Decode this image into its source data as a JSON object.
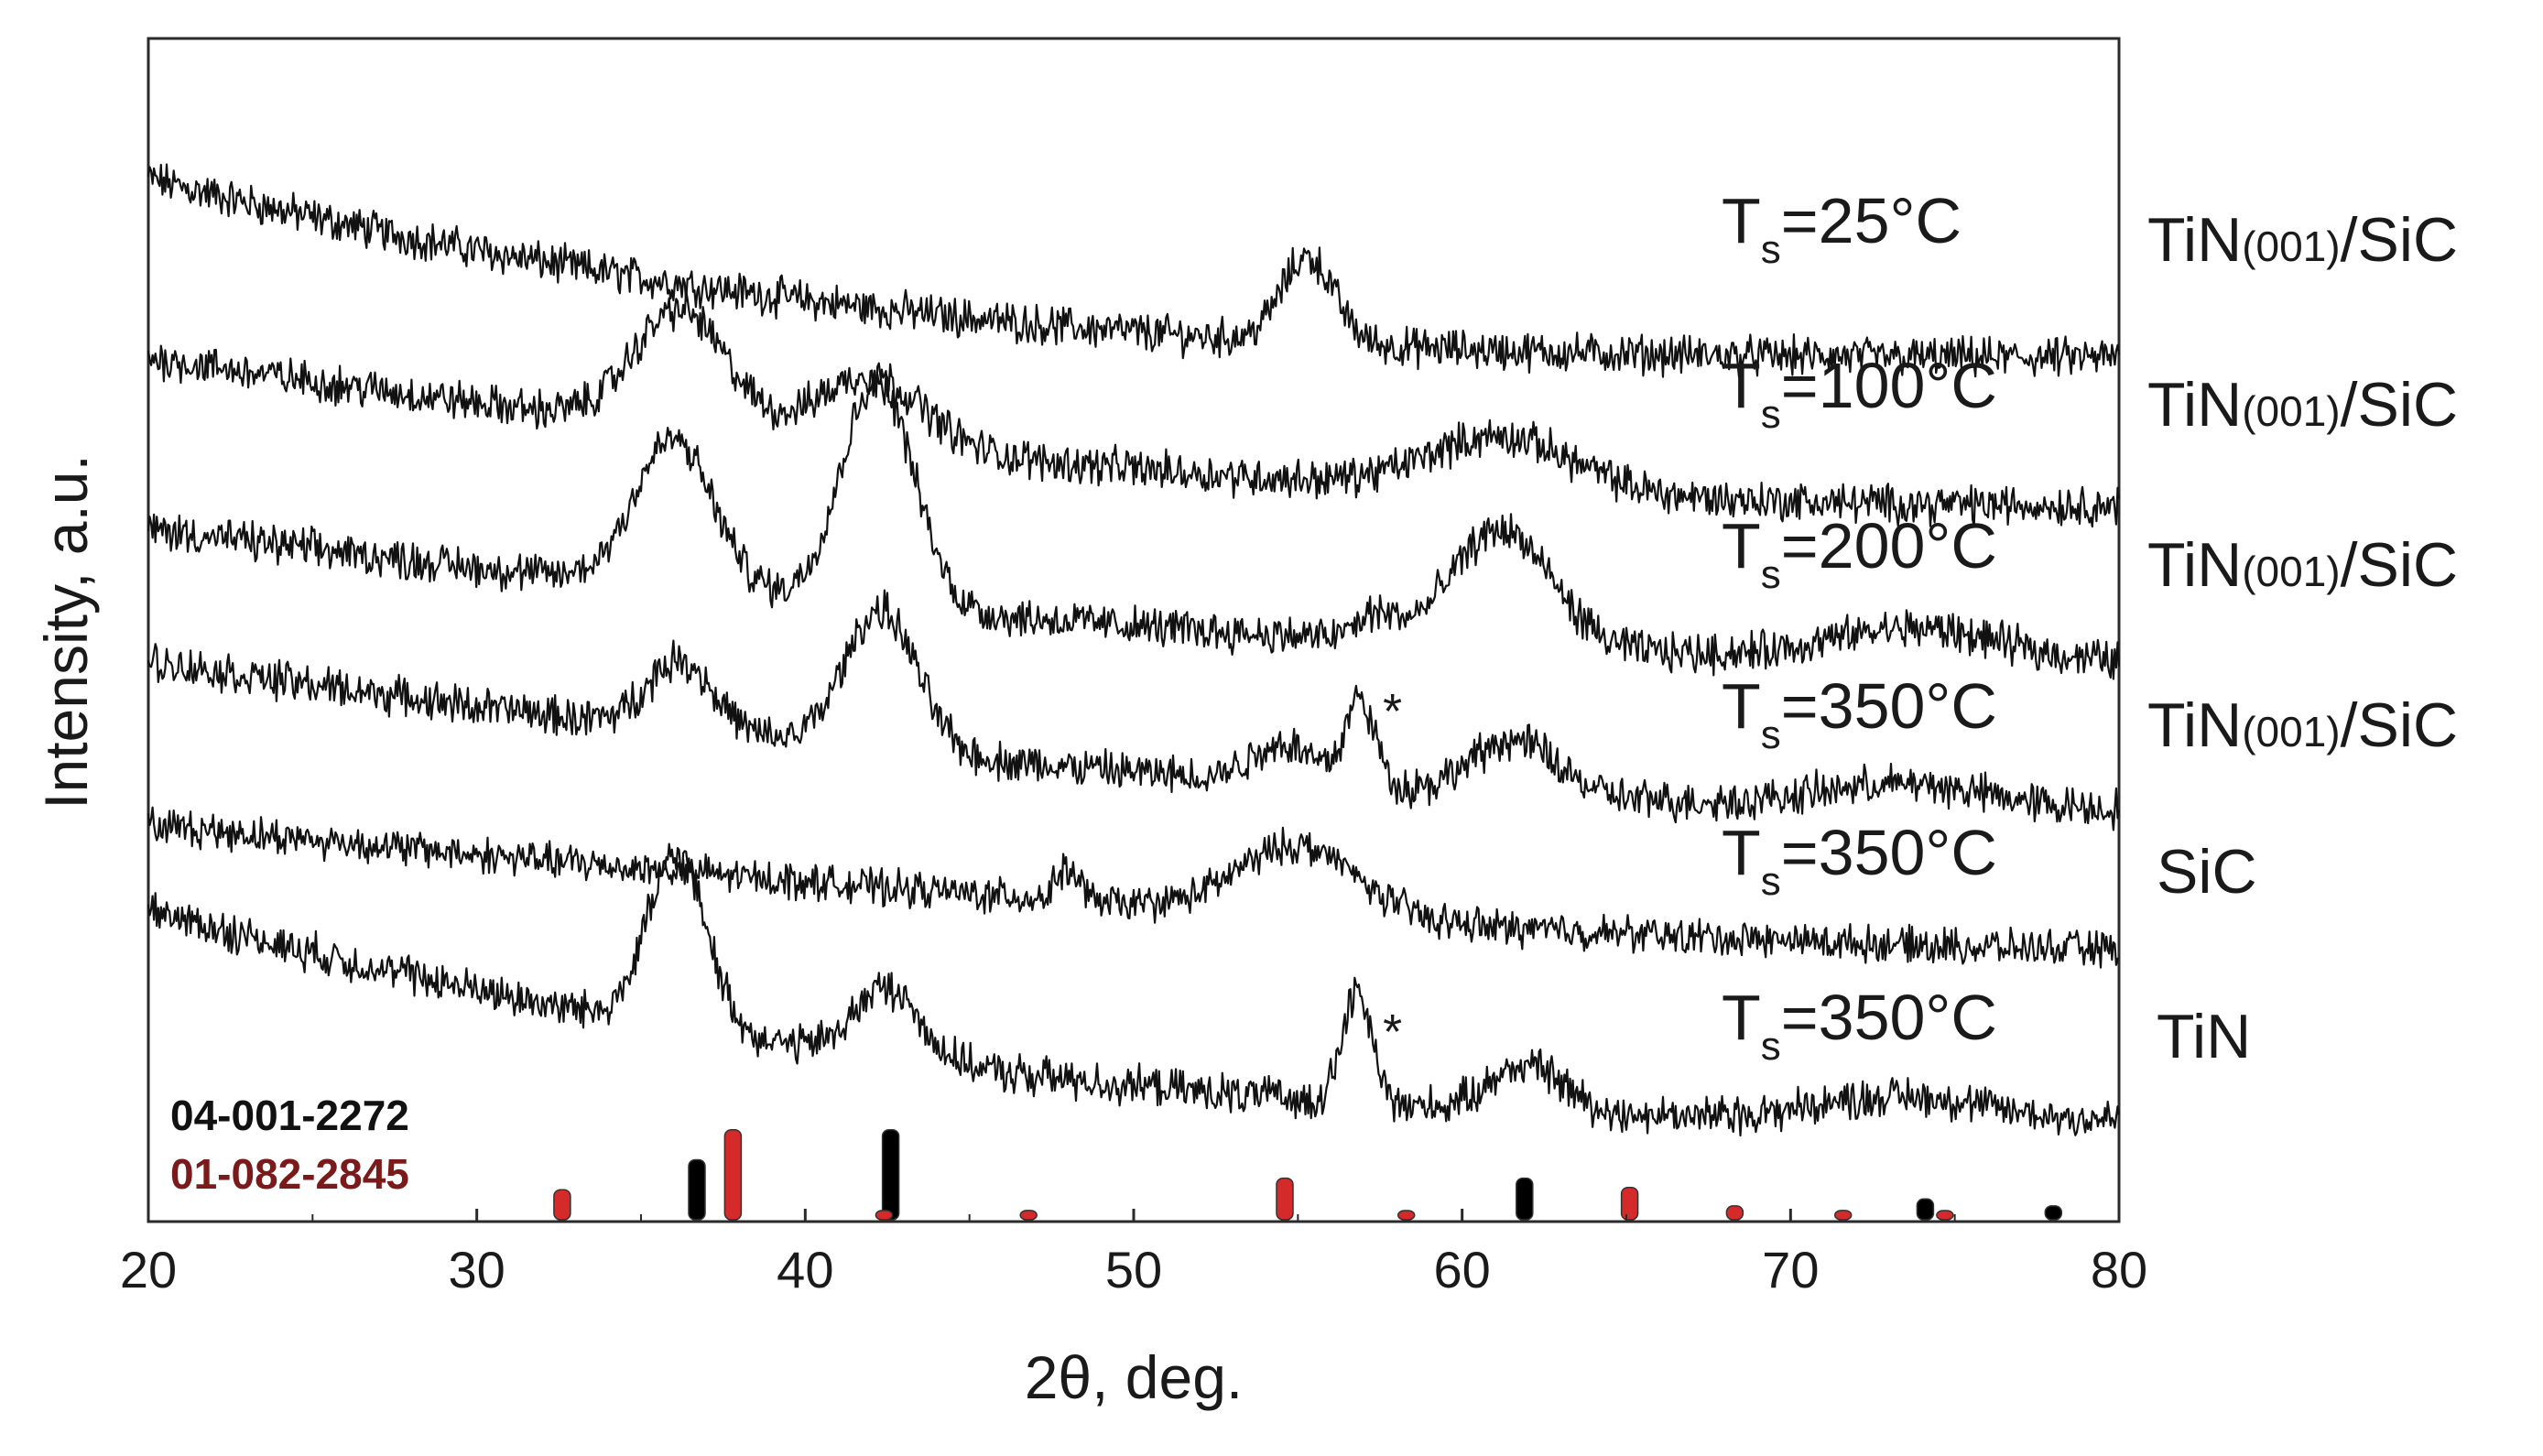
{
  "chart_data": {
    "type": "line",
    "title": "",
    "xlabel": "2θ, deg.",
    "ylabel": "Intensity, a.u.",
    "xlim": [
      20,
      80
    ],
    "ylim": [
      0,
      7.6
    ],
    "x_ticks": [
      "20",
      "30",
      "40",
      "50",
      "60",
      "70",
      "80"
    ],
    "y_ticks": [],
    "grid": false,
    "legend": "none",
    "series": [
      {
        "name": "TiN(001)/SiC Ts=25°C",
        "ts_main": "T",
        "ts_sub": "s",
        "ts_value": "=25°C",
        "sample_prefix": "TiN",
        "sample_sub": "(001)",
        "sample_suffix": "/SiC",
        "offset": 5.55,
        "bg_start": 1.15,
        "bg_end": 0.0,
        "bg_curve": 0.9,
        "noise": 0.1,
        "peaks": [
          {
            "x": 55.3,
            "height": 0.55,
            "width": 0.8
          }
        ]
      },
      {
        "name": "TiN(001)/SiC Ts=100°C",
        "ts_main": "T",
        "ts_sub": "s",
        "ts_value": "=100°C",
        "sample_prefix": "TiN",
        "sample_sub": "(001)",
        "sample_suffix": "/SiC",
        "offset": 4.6,
        "bg_start": 0.95,
        "bg_end": 0.0,
        "bg_curve": 0.5,
        "noise": 0.1,
        "peaks": [
          {
            "x": 36.2,
            "height": 0.75,
            "width": 1.4
          },
          {
            "x": 42.0,
            "height": 0.45,
            "width": 1.6
          },
          {
            "x": 61.2,
            "height": 0.35,
            "width": 2.2
          }
        ]
      },
      {
        "name": "TiN(001)/SiC Ts=200°C",
        "ts_main": "T",
        "ts_sub": "s",
        "ts_value": "=200°C",
        "sample_prefix": "TiN",
        "sample_sub": "(001)",
        "sample_suffix": "/SiC",
        "offset": 3.6,
        "bg_start": 0.85,
        "bg_end": 0.0,
        "bg_curve": 0.45,
        "noise": 0.1,
        "peaks": [
          {
            "x": 36.0,
            "height": 0.95,
            "width": 1.2
          },
          {
            "x": 42.2,
            "height": 1.45,
            "width": 1.1
          },
          {
            "x": 57.4,
            "height": 0.15,
            "width": 0.6
          },
          {
            "x": 61.2,
            "height": 0.75,
            "width": 1.5
          },
          {
            "x": 73.8,
            "height": 0.2,
            "width": 2.5
          }
        ]
      },
      {
        "name": "TiN(001)/SiC Ts=350°C",
        "ts_main": "T",
        "ts_sub": "s",
        "ts_value": "=350°C",
        "sample_prefix": "TiN",
        "sample_sub": "(001)",
        "sample_suffix": "/SiC",
        "offset": 2.65,
        "bg_start": 0.95,
        "bg_end": 0.0,
        "bg_curve": 0.5,
        "noise": 0.1,
        "peaks": [
          {
            "x": 36.2,
            "height": 0.45,
            "width": 1.0
          },
          {
            "x": 42.3,
            "height": 0.9,
            "width": 1.1
          },
          {
            "x": 54.6,
            "height": 0.25,
            "width": 1.0
          },
          {
            "x": 56.9,
            "height": 0.55,
            "width": 0.45
          },
          {
            "x": 61.6,
            "height": 0.35,
            "width": 1.3
          },
          {
            "x": 73.5,
            "height": 0.15,
            "width": 2.5
          }
        ],
        "star_x": 57.7
      },
      {
        "name": "SiC Ts=350°C",
        "ts_main": "T",
        "ts_sub": "s",
        "ts_value": "=350°C",
        "sample_prefix": "SiC",
        "sample_sub": "",
        "sample_suffix": "",
        "offset": 1.75,
        "bg_start": 0.8,
        "bg_end": 0.0,
        "bg_curve": 0.25,
        "noise": 0.09,
        "peaks": [
          {
            "x": 48.0,
            "height": 0.2,
            "width": 0.35
          },
          {
            "x": 55.0,
            "height": 0.45,
            "width": 1.8
          }
        ]
      },
      {
        "name": "TiN Ts=350°C",
        "ts_main": "T",
        "ts_sub": "s",
        "ts_value": "=350°C",
        "sample_prefix": "TiN",
        "sample_sub": "",
        "sample_suffix": "",
        "offset": 0.65,
        "bg_start": 1.35,
        "bg_end": 0.0,
        "bg_curve": 0.8,
        "noise": 0.1,
        "peaks": [
          {
            "x": 36.1,
            "height": 1.1,
            "width": 0.9
          },
          {
            "x": 42.5,
            "height": 0.45,
            "width": 1.0
          },
          {
            "x": 56.8,
            "height": 0.7,
            "width": 0.45
          },
          {
            "x": 62.0,
            "height": 0.3,
            "width": 1.1
          },
          {
            "x": 73.4,
            "height": 0.15,
            "width": 2.5
          }
        ],
        "star_x": 57.7
      }
    ],
    "reference_patterns": [
      {
        "name": "04-001-2272",
        "color": "#000000",
        "lines": [
          {
            "x": 36.7,
            "intensity": 0.52
          },
          {
            "x": 42.6,
            "intensity": 0.78
          },
          {
            "x": 61.9,
            "intensity": 0.36
          },
          {
            "x": 74.1,
            "intensity": 0.18
          },
          {
            "x": 78.0,
            "intensity": 0.12
          }
        ]
      },
      {
        "name": "01-082-2845",
        "color": "#d42a2a",
        "lines": [
          {
            "x": 32.6,
            "intensity": 0.26
          },
          {
            "x": 37.8,
            "intensity": 0.78
          },
          {
            "x": 42.4,
            "intensity": 0.08
          },
          {
            "x": 46.8,
            "intensity": 0.08
          },
          {
            "x": 54.6,
            "intensity": 0.36
          },
          {
            "x": 58.3,
            "intensity": 0.05
          },
          {
            "x": 65.1,
            "intensity": 0.28
          },
          {
            "x": 68.3,
            "intensity": 0.12
          },
          {
            "x": 71.6,
            "intensity": 0.08
          },
          {
            "x": 74.7,
            "intensity": 0.07
          }
        ]
      }
    ],
    "annotations": [
      {
        "text": "*",
        "meaning": "marker next to peak near 57 deg"
      }
    ]
  },
  "labels": {
    "pdf_black": "04-001-2272",
    "pdf_red": "01-082-2845",
    "pdf_red_text_color": "#7a1a1a",
    "star": "*"
  }
}
